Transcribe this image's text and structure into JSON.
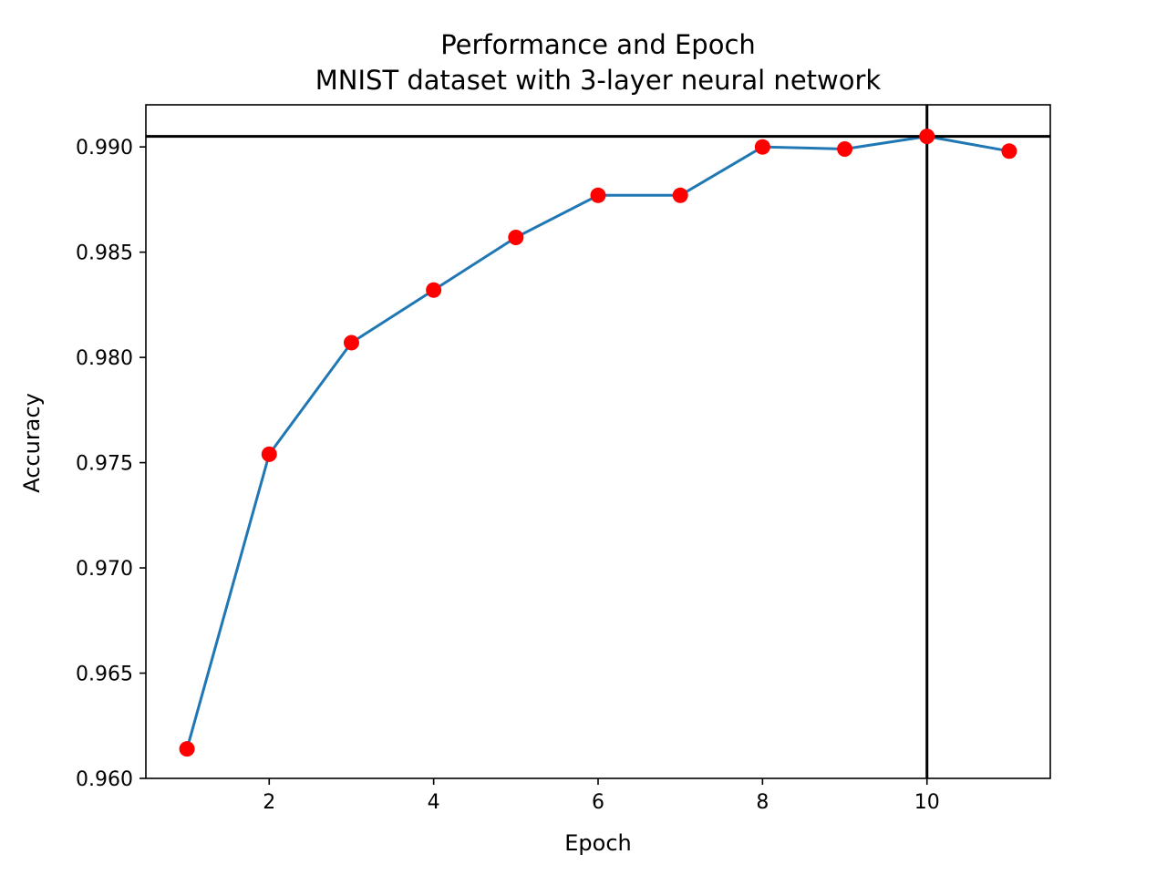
{
  "chart_data": {
    "type": "line",
    "title": "Performance and Epoch",
    "subtitle": "MNIST dataset with 3-layer neural network",
    "xlabel": "Epoch",
    "ylabel": "Accuracy",
    "xlim": [
      0.5,
      11.5
    ],
    "ylim": [
      0.96,
      0.992
    ],
    "xticks": [
      2,
      4,
      6,
      8,
      10
    ],
    "xtick_labels": [
      "2",
      "4",
      "6",
      "8",
      "10"
    ],
    "yticks": [
      0.96,
      0.965,
      0.97,
      0.975,
      0.98,
      0.985,
      0.99
    ],
    "ytick_labels": [
      "0.960",
      "0.965",
      "0.970",
      "0.975",
      "0.980",
      "0.985",
      "0.990"
    ],
    "grid": false,
    "series": [
      {
        "x": [
          1,
          2,
          3,
          4,
          5,
          6,
          7,
          8,
          9,
          10,
          11
        ],
        "y": [
          0.9614,
          0.9754,
          0.9807,
          0.9832,
          0.9857,
          0.9877,
          0.9877,
          0.99,
          0.9899,
          0.9905,
          0.9898
        ],
        "line_color": "#1f77b4",
        "marker_color": "#ff0000"
      }
    ],
    "reference_lines": {
      "horizontal_y": 0.9905,
      "vertical_x": 10,
      "color": "#000000"
    }
  }
}
